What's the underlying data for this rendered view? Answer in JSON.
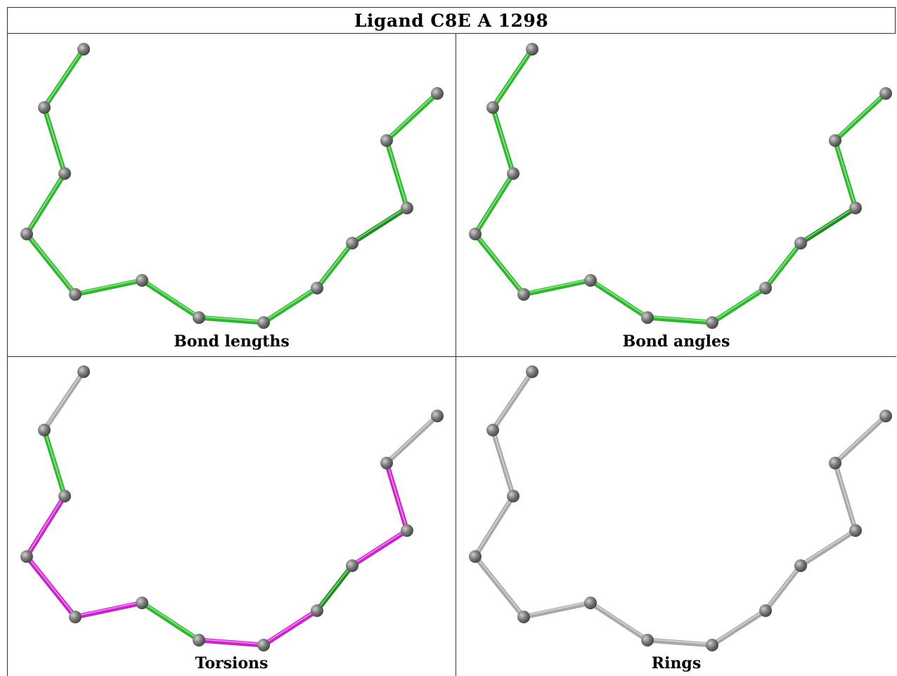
{
  "title": "Ligand C8E A 1298",
  "colors": {
    "green": "#2db82d",
    "green_dark": "#1e8f1e",
    "magenta": "#cc22cc",
    "grey_bond": "#a8a8a8",
    "atom": "#7a7a7a"
  },
  "panels": [
    {
      "id": "bond-lengths",
      "caption": "Bond lengths",
      "bond_colors": [
        "green",
        "green",
        "green",
        "green",
        "green",
        "green",
        "green",
        "green",
        "green",
        "green_dark",
        "green",
        "green",
        "green"
      ]
    },
    {
      "id": "bond-angles",
      "caption": "Bond angles",
      "bond_colors": [
        "green",
        "green",
        "green",
        "green",
        "green",
        "green",
        "green",
        "green",
        "green",
        "green_dark",
        "green",
        "green",
        "green"
      ]
    },
    {
      "id": "torsions",
      "caption": "Torsions",
      "bond_colors": [
        "grey_bond",
        "green",
        "magenta",
        "magenta",
        "magenta",
        "green",
        "magenta",
        "magenta",
        "green_dark",
        "magenta",
        "magenta",
        "grey_bond",
        "grey_bond"
      ]
    },
    {
      "id": "rings",
      "caption": "Rings",
      "bond_colors": [
        "grey_bond",
        "grey_bond",
        "grey_bond",
        "grey_bond",
        "grey_bond",
        "grey_bond",
        "grey_bond",
        "grey_bond",
        "grey_bond",
        "grey_bond",
        "grey_bond",
        "grey_bond",
        "grey_bond"
      ]
    }
  ]
}
